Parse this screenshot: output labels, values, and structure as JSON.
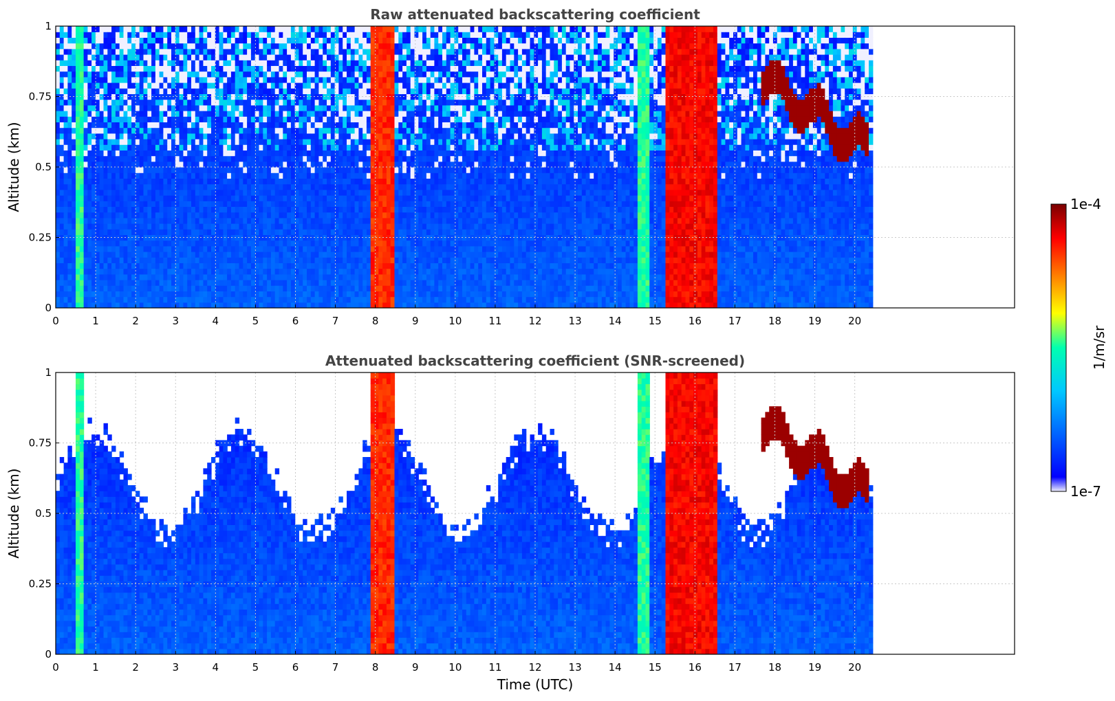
{
  "chart_data": [
    {
      "type": "heatmap",
      "title": "Raw attenuated backscattering coefficient",
      "xlabel": "",
      "ylabel": "Altitude (km)",
      "xlim": [
        0,
        24
      ],
      "ylim": [
        0,
        1
      ],
      "x_ticks": [
        "0",
        "1",
        "2",
        "3",
        "4",
        "5",
        "6",
        "7",
        "8",
        "9",
        "10",
        "11",
        "12",
        "13",
        "14",
        "15",
        "16",
        "17",
        "18",
        "19",
        "20"
      ],
      "y_ticks": [
        "0",
        "0.25",
        "0.5",
        "0.75",
        "1"
      ],
      "data_end_time": 20.45,
      "grid": true,
      "features": [
        {
          "name": "",
          "x_start": 0.5,
          "x_end": 0.72,
          "z_top": 1.0,
          "level": 0.55
        },
        {
          "name": "",
          "x_start": 7.9,
          "x_end": 8.45,
          "z_top": 1.0,
          "level": 0.88
        },
        {
          "name": "",
          "x_start": 14.55,
          "x_end": 14.85,
          "z_top": 1.0,
          "level": 0.55
        },
        {
          "name": "",
          "x_start": 15.25,
          "x_end": 16.6,
          "z_top": 1.0,
          "level": 0.92
        },
        {
          "name": "",
          "x_start": 17.7,
          "x_end": 20.4,
          "z_top": 0.75,
          "level": 0.97
        }
      ]
    },
    {
      "type": "heatmap",
      "title": "Attenuated backscattering coefficient (SNR-screened)",
      "xlabel": "Time (UTC)",
      "ylabel": "Altitude (km)",
      "xlim": [
        0,
        24
      ],
      "ylim": [
        0,
        1
      ],
      "x_ticks": [
        "0",
        "1",
        "2",
        "3",
        "4",
        "5",
        "6",
        "7",
        "8",
        "9",
        "10",
        "11",
        "12",
        "13",
        "14",
        "15",
        "16",
        "17",
        "18",
        "19",
        "20"
      ],
      "y_ticks": [
        "0",
        "0.25",
        "0.5",
        "0.75",
        "1"
      ],
      "data_end_time": 20.45,
      "grid": true,
      "screened_top_km": 0.55
    }
  ],
  "colorbar": {
    "min_label": "1e-7",
    "max_label": "1e-4",
    "unit_label": "1/m/sr",
    "colormap": "jet",
    "colors": [
      "#f0f0ff",
      "#0000ff",
      "#00c8ff",
      "#00ffb0",
      "#ffff00",
      "#ff8000",
      "#ff0000",
      "#7a0000"
    ]
  }
}
